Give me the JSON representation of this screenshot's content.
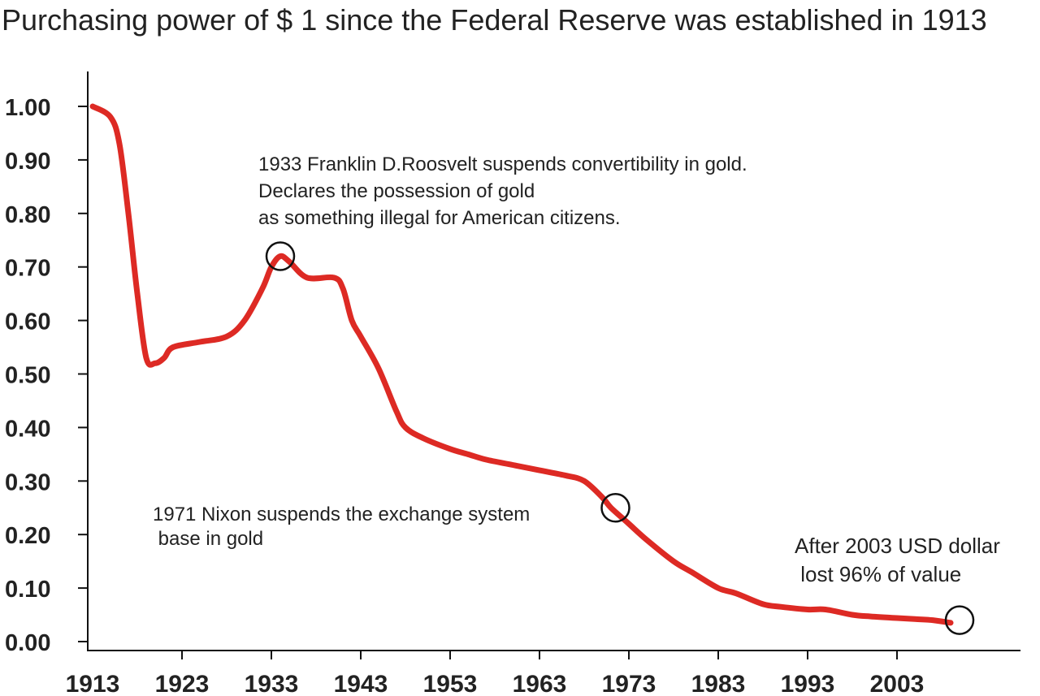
{
  "chart_data": {
    "type": "line",
    "title": "Purchasing power of $ 1 since the Federal Reserve was established in 1913",
    "xlabel": "",
    "ylabel": "",
    "xlim": [
      1913,
      2013
    ],
    "ylim": [
      0,
      1
    ],
    "grid": false,
    "x_ticks": [
      "1913",
      "1923",
      "1933",
      "1943",
      "1953",
      "1963",
      "1973",
      "1983",
      "1993",
      "2003"
    ],
    "y_ticks": [
      "1.00",
      "0.90",
      "0.80",
      "0.70",
      "0.60",
      "0.50",
      "0.40",
      "0.30",
      "0.20",
      "0.10",
      "0.00"
    ],
    "line_color": "#dd2a24",
    "series": [
      {
        "x": [
          1913,
          1915,
          1916,
          1917,
          1918,
          1919,
          1920,
          1921,
          1922,
          1925,
          1928,
          1930,
          1932,
          1933,
          1934,
          1935,
          1937,
          1940,
          1941,
          1942,
          1943,
          1945,
          1947,
          1948,
          1950,
          1953,
          1955,
          1957,
          1960,
          1963,
          1966,
          1968,
          1970,
          1971,
          1973,
          1975,
          1978,
          1980,
          1983,
          1985,
          1988,
          1990,
          1993,
          1995,
          1998,
          2000,
          2003,
          2005,
          2007,
          2009
        ],
        "y": [
          1.0,
          0.98,
          0.93,
          0.8,
          0.65,
          0.53,
          0.52,
          0.53,
          0.55,
          0.56,
          0.57,
          0.6,
          0.66,
          0.7,
          0.72,
          0.71,
          0.68,
          0.68,
          0.66,
          0.6,
          0.57,
          0.51,
          0.43,
          0.4,
          0.38,
          0.36,
          0.35,
          0.34,
          0.33,
          0.32,
          0.31,
          0.3,
          0.27,
          0.25,
          0.22,
          0.19,
          0.15,
          0.13,
          0.1,
          0.09,
          0.07,
          0.065,
          0.06,
          0.06,
          0.05,
          0.047,
          0.044,
          0.042,
          0.04,
          0.035
        ]
      }
    ],
    "markers": [
      {
        "x": 1934,
        "y": 0.72
      },
      {
        "x": 1971.5,
        "y": 0.25
      },
      {
        "x": 2010,
        "y": 0.04
      }
    ],
    "annotations": [
      {
        "lines": [
          "1933 Franklin D.Roosvelt suspends convertibility in gold.",
          "Declares the possession of gold",
          "as something illegal for American citizens."
        ]
      },
      {
        "lines": [
          "1971 Nixon suspends the exchange system",
          " base in gold"
        ]
      },
      {
        "lines": [
          "After 2003 USD dollar",
          " lost 96% of value"
        ]
      }
    ]
  }
}
